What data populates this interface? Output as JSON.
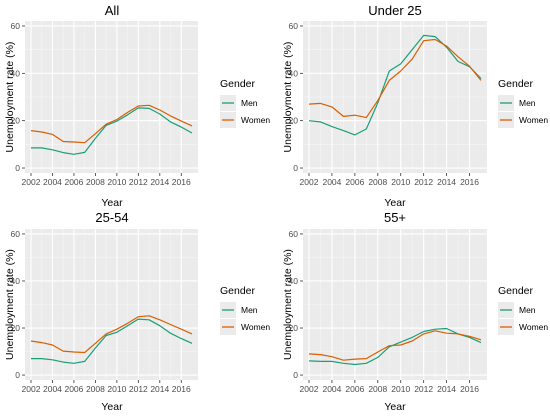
{
  "chart_data": [
    {
      "type": "line",
      "title": "All",
      "xlabel": "Year",
      "ylabel": "Unemployment rate (%)",
      "xlim": [
        2002,
        2017
      ],
      "ylim": [
        0,
        60
      ],
      "xticks": [
        2002,
        2004,
        2006,
        2008,
        2010,
        2012,
        2014,
        2016
      ],
      "yticks": [
        0,
        20,
        40,
        60
      ],
      "x": [
        2002,
        2003,
        2004,
        2005,
        2006,
        2007,
        2008,
        2009,
        2010,
        2011,
        2012,
        2013,
        2014,
        2015,
        2016,
        2017
      ],
      "legend_title": "Gender",
      "series": [
        {
          "name": "Men",
          "color": "#1b9e77",
          "values": [
            8.5,
            8.5,
            7.7,
            6.5,
            5.8,
            6.6,
            12.5,
            18.0,
            19.8,
            22.5,
            25.4,
            25.2,
            22.8,
            19.5,
            17.3,
            14.8
          ]
        },
        {
          "name": "Women",
          "color": "#d95f02",
          "values": [
            15.8,
            15.2,
            14.2,
            11.2,
            11.0,
            10.7,
            14.5,
            18.5,
            20.5,
            23.5,
            26.2,
            26.5,
            24.5,
            22.0,
            19.8,
            17.8
          ]
        }
      ]
    },
    {
      "type": "line",
      "title": "Under 25",
      "xlabel": "Year",
      "ylabel": "Unemployment rate (%)",
      "xlim": [
        2002,
        2017
      ],
      "ylim": [
        0,
        60
      ],
      "xticks": [
        2002,
        2004,
        2006,
        2008,
        2010,
        2012,
        2014,
        2016
      ],
      "yticks": [
        0,
        20,
        40,
        60
      ],
      "x": [
        2002,
        2003,
        2004,
        2005,
        2006,
        2007,
        2008,
        2009,
        2010,
        2011,
        2012,
        2013,
        2014,
        2015,
        2016,
        2017
      ],
      "legend_title": "Gender",
      "series": [
        {
          "name": "Men",
          "color": "#1b9e77",
          "values": [
            20.0,
            19.5,
            17.5,
            15.8,
            14.0,
            16.5,
            27.5,
            41.0,
            44.0,
            50.0,
            56.0,
            55.5,
            51.0,
            45.0,
            42.8,
            37.8
          ]
        },
        {
          "name": "Women",
          "color": "#d95f02",
          "values": [
            27.0,
            27.3,
            25.8,
            21.8,
            22.3,
            21.3,
            28.5,
            37.0,
            41.0,
            46.0,
            53.8,
            54.3,
            51.5,
            47.0,
            43.0,
            37.0
          ]
        }
      ]
    },
    {
      "type": "line",
      "title": "25-54",
      "xlabel": "Year",
      "ylabel": "Unemployment rate (%)",
      "xlim": [
        2002,
        2017
      ],
      "ylim": [
        0,
        60
      ],
      "xticks": [
        2002,
        2004,
        2006,
        2008,
        2010,
        2012,
        2014,
        2016
      ],
      "yticks": [
        0,
        20,
        40,
        60
      ],
      "x": [
        2002,
        2003,
        2004,
        2005,
        2006,
        2007,
        2008,
        2009,
        2010,
        2011,
        2012,
        2013,
        2014,
        2015,
        2016,
        2017
      ],
      "legend_title": "Gender",
      "series": [
        {
          "name": "Men",
          "color": "#1b9e77",
          "values": [
            7.0,
            7.0,
            6.5,
            5.5,
            5.0,
            5.8,
            11.5,
            16.8,
            18.2,
            21.0,
            23.8,
            23.5,
            21.0,
            17.8,
            15.5,
            13.5
          ]
        },
        {
          "name": "Women",
          "color": "#d95f02",
          "values": [
            14.5,
            13.8,
            12.8,
            10.2,
            9.8,
            9.6,
            13.5,
            17.5,
            19.5,
            22.0,
            24.8,
            25.2,
            23.5,
            21.5,
            19.5,
            17.5
          ]
        }
      ]
    },
    {
      "type": "line",
      "title": "55+",
      "xlabel": "Year",
      "ylabel": "Unemployment rate (%)",
      "xlim": [
        2002,
        2017
      ],
      "ylim": [
        0,
        60
      ],
      "xticks": [
        2002,
        2004,
        2006,
        2008,
        2010,
        2012,
        2014,
        2016
      ],
      "yticks": [
        0,
        20,
        40,
        60
      ],
      "x": [
        2002,
        2003,
        2004,
        2005,
        2006,
        2007,
        2008,
        2009,
        2010,
        2011,
        2012,
        2013,
        2014,
        2015,
        2016,
        2017
      ],
      "legend_title": "Gender",
      "series": [
        {
          "name": "Men",
          "color": "#1b9e77",
          "values": [
            6.0,
            5.8,
            5.8,
            5.0,
            4.5,
            5.0,
            7.5,
            12.0,
            14.0,
            16.0,
            18.5,
            19.5,
            19.8,
            17.5,
            16.0,
            13.8
          ]
        },
        {
          "name": "Women",
          "color": "#d95f02",
          "values": [
            9.0,
            8.7,
            7.8,
            6.3,
            6.8,
            7.0,
            9.8,
            12.5,
            12.8,
            14.5,
            17.5,
            18.8,
            17.8,
            17.5,
            16.5,
            15.0
          ]
        }
      ]
    }
  ]
}
